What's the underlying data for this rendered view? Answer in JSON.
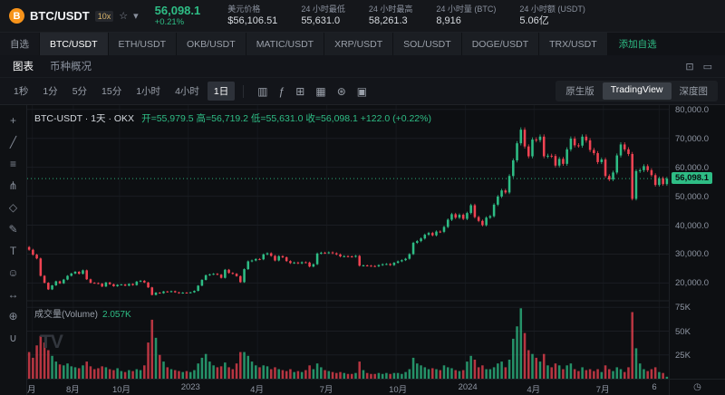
{
  "header": {
    "pair": "BTC/USDT",
    "leverage_badge": "10x",
    "last_price": "56,098.1",
    "change_pct": "+0.21%",
    "stats": [
      {
        "label": "美元价格",
        "value": "$56,106.51"
      },
      {
        "label": "24 小时最低",
        "value": "55,631.0"
      },
      {
        "label": "24 小时最高",
        "value": "58,261.3"
      },
      {
        "label": "24 小时量 (BTC)",
        "value": "8,916"
      },
      {
        "label": "24 小时额 (USDT)",
        "value": "5.06亿"
      }
    ]
  },
  "pair_tabs": {
    "items": [
      "自选",
      "BTC/USDT",
      "ETH/USDT",
      "OKB/USDT",
      "MATIC/USDT",
      "XRP/USDT",
      "SOL/USDT",
      "DOGE/USDT",
      "TRX/USDT"
    ],
    "active": "BTC/USDT",
    "add_label": "添加自选"
  },
  "view_tabs": {
    "chart": "图表",
    "overview": "币种概况",
    "active": "图表",
    "right_icons": [
      {
        "name": "popout-icon",
        "glyph": "⊡"
      },
      {
        "name": "panel-layout-icon",
        "glyph": "▭"
      }
    ]
  },
  "toolbar": {
    "intervals": [
      "1秒",
      "1分",
      "5分",
      "15分",
      "1小时",
      "4小时",
      "1日"
    ],
    "active_interval": "1日",
    "icons": [
      {
        "name": "candle-style-icon",
        "glyph": "▥"
      },
      {
        "name": "indicators-icon",
        "glyph": "ƒ"
      },
      {
        "name": "compare-icon",
        "glyph": "⊞"
      },
      {
        "name": "layout-icon",
        "glyph": "▦"
      },
      {
        "name": "settings-icon",
        "glyph": "⊛"
      },
      {
        "name": "camera-icon",
        "glyph": "▣"
      }
    ],
    "modes": [
      "原生版",
      "TradingView",
      "深度图"
    ],
    "active_mode": "TradingView"
  },
  "drawing_tools": [
    {
      "name": "crosshair-icon",
      "glyph": "+"
    },
    {
      "name": "trendline-icon",
      "glyph": "╱"
    },
    {
      "name": "fib-lines-icon",
      "glyph": "≡"
    },
    {
      "name": "pitchfork-icon",
      "glyph": "⋔"
    },
    {
      "name": "pattern-icon",
      "glyph": "◇"
    },
    {
      "name": "brush-icon",
      "glyph": "✎"
    },
    {
      "name": "text-tool-icon",
      "glyph": "T"
    },
    {
      "name": "emoji-icon",
      "glyph": "☺"
    },
    {
      "name": "measure-icon",
      "glyph": "↔"
    },
    {
      "name": "zoom-icon",
      "glyph": "⊕"
    },
    {
      "name": "magnet-icon",
      "glyph": "∪"
    }
  ],
  "legend": {
    "title": "BTC-USDT · 1天 · OKX",
    "ohlc": "开=55,979.5 高=56,719.2 低=55,631.0 收=56,098.1 +122.0 (+0.22%)"
  },
  "volume_legend": {
    "label": "成交量(Volume)",
    "value": "2.057K"
  },
  "misc": {
    "clock_glyph": "◷",
    "watermark": "TV"
  },
  "colors": {
    "up": "#2ebd85",
    "down": "#f04352",
    "accent": "#2ebd85",
    "btc_orange": "#f7931a"
  },
  "chart_data": {
    "type": "candlestick",
    "symbol": "BTC-USDT",
    "interval": "1天",
    "exchange": "OKX",
    "ohlc": {
      "open": 55979.5,
      "high": 56719.2,
      "low": 55631.0,
      "close": 56098.1,
      "change": "+122.0 (+0.22%)"
    },
    "price_axis": {
      "min": 14500,
      "max": 81500,
      "labels": [
        {
          "v": 80000,
          "t": "80,000.0"
        },
        {
          "v": 70000,
          "t": "70,000.0"
        },
        {
          "v": 60000,
          "t": "60,000.0"
        },
        {
          "v": 50000,
          "t": "50,000.0"
        },
        {
          "v": 40000,
          "t": "40,000.0"
        },
        {
          "v": 30000,
          "t": "30,000.0"
        },
        {
          "v": 20000,
          "t": "20,000.0"
        }
      ]
    },
    "current_price": {
      "v": 56098.1,
      "t": "56,098.1"
    },
    "volume_axis": {
      "max_k": 80,
      "labels": [
        {
          "v": 75,
          "t": "75K"
        },
        {
          "v": 50,
          "t": "50K"
        },
        {
          "v": 25,
          "t": "25K"
        }
      ]
    },
    "time_labels": [
      {
        "p": 0.008,
        "t": "月"
      },
      {
        "p": 0.072,
        "t": "8月"
      },
      {
        "p": 0.144,
        "t": "10月"
      },
      {
        "p": 0.251,
        "t": "2023"
      },
      {
        "p": 0.359,
        "t": "4月"
      },
      {
        "p": 0.467,
        "t": "7月"
      },
      {
        "p": 0.575,
        "t": "10月"
      },
      {
        "p": 0.683,
        "t": "2024"
      },
      {
        "p": 0.79,
        "t": "4月"
      },
      {
        "p": 0.898,
        "t": "7月"
      },
      {
        "p": 0.985,
        "t": "6"
      }
    ],
    "closes": [
      31500,
      29800,
      28500,
      22500,
      20100,
      17800,
      19200,
      20600,
      19900,
      21200,
      22500,
      23300,
      23900,
      23200,
      24400,
      21300,
      20100,
      20000,
      19800,
      18800,
      20200,
      19600,
      18900,
      19400,
      19500,
      19100,
      19700,
      19300,
      20500,
      20800,
      20200,
      18500,
      15900,
      16700,
      16500,
      17100,
      16900,
      17200,
      16800,
      16500,
      16700,
      16600,
      16800,
      17300,
      19100,
      21100,
      22700,
      23000,
      23200,
      22900,
      21800,
      24600,
      23500,
      23200,
      22400,
      20300,
      24800,
      27500,
      27800,
      28300,
      28200,
      29900,
      30300,
      29400,
      27800,
      29300,
      28900,
      27600,
      26900,
      27100,
      26800,
      27200,
      27100,
      25700,
      26500,
      30200,
      30500,
      30400,
      30600,
      30300,
      29900,
      29200,
      29300,
      29200,
      29100,
      29400,
      26000,
      26100,
      26000,
      25900,
      25800,
      26200,
      26500,
      26600,
      26200,
      27000,
      27500,
      27900,
      28400,
      30000,
      33900,
      34500,
      35400,
      36700,
      37300,
      36500,
      37800,
      37700,
      39400,
      41900,
      43800,
      42600,
      43600,
      42200,
      44200,
      46900,
      42800,
      41500,
      40000,
      42600,
      43100,
      47100,
      49900,
      52000,
      51300,
      57000,
      62400,
      68300,
      73000,
      67200,
      63800,
      69600,
      69400,
      70600,
      63800,
      64000,
      63900,
      60600,
      62900,
      61200,
      66200,
      69900,
      67600,
      67500,
      70600,
      69300,
      66000,
      64900,
      61800,
      62700,
      57000,
      55800,
      58200,
      64100,
      67900,
      66200,
      64600,
      49100,
      58700,
      59000,
      60400,
      59000,
      57300,
      53900,
      56200,
      54200,
      56098.1
    ],
    "volumes_k": [
      28,
      22,
      35,
      45,
      38,
      30,
      24,
      18,
      15,
      14,
      16,
      13,
      12,
      11,
      14,
      18,
      13,
      10,
      11,
      13,
      12,
      10,
      9,
      11,
      8,
      7,
      9,
      8,
      10,
      9,
      14,
      38,
      62,
      43,
      25,
      18,
      12,
      10,
      9,
      8,
      7,
      8,
      7,
      9,
      16,
      22,
      26,
      18,
      14,
      12,
      13,
      17,
      12,
      10,
      16,
      28,
      28,
      24,
      18,
      14,
      12,
      14,
      13,
      10,
      12,
      10,
      9,
      8,
      10,
      7,
      8,
      7,
      9,
      14,
      10,
      16,
      12,
      9,
      8,
      7,
      6,
      7,
      6,
      5,
      5,
      6,
      18,
      9,
      6,
      5,
      5,
      6,
      5,
      6,
      5,
      6,
      6,
      5,
      7,
      10,
      22,
      16,
      14,
      12,
      10,
      11,
      10,
      9,
      14,
      12,
      11,
      9,
      8,
      9,
      18,
      24,
      20,
      12,
      14,
      10,
      10,
      12,
      16,
      18,
      12,
      20,
      42,
      55,
      74,
      48,
      30,
      26,
      22,
      18,
      26,
      14,
      12,
      16,
      14,
      10,
      14,
      16,
      10,
      8,
      12,
      9,
      10,
      8,
      10,
      7,
      14,
      10,
      8,
      12,
      10,
      7,
      12,
      70,
      32,
      16,
      10,
      8,
      10,
      12,
      7,
      6,
      2.057
    ]
  }
}
